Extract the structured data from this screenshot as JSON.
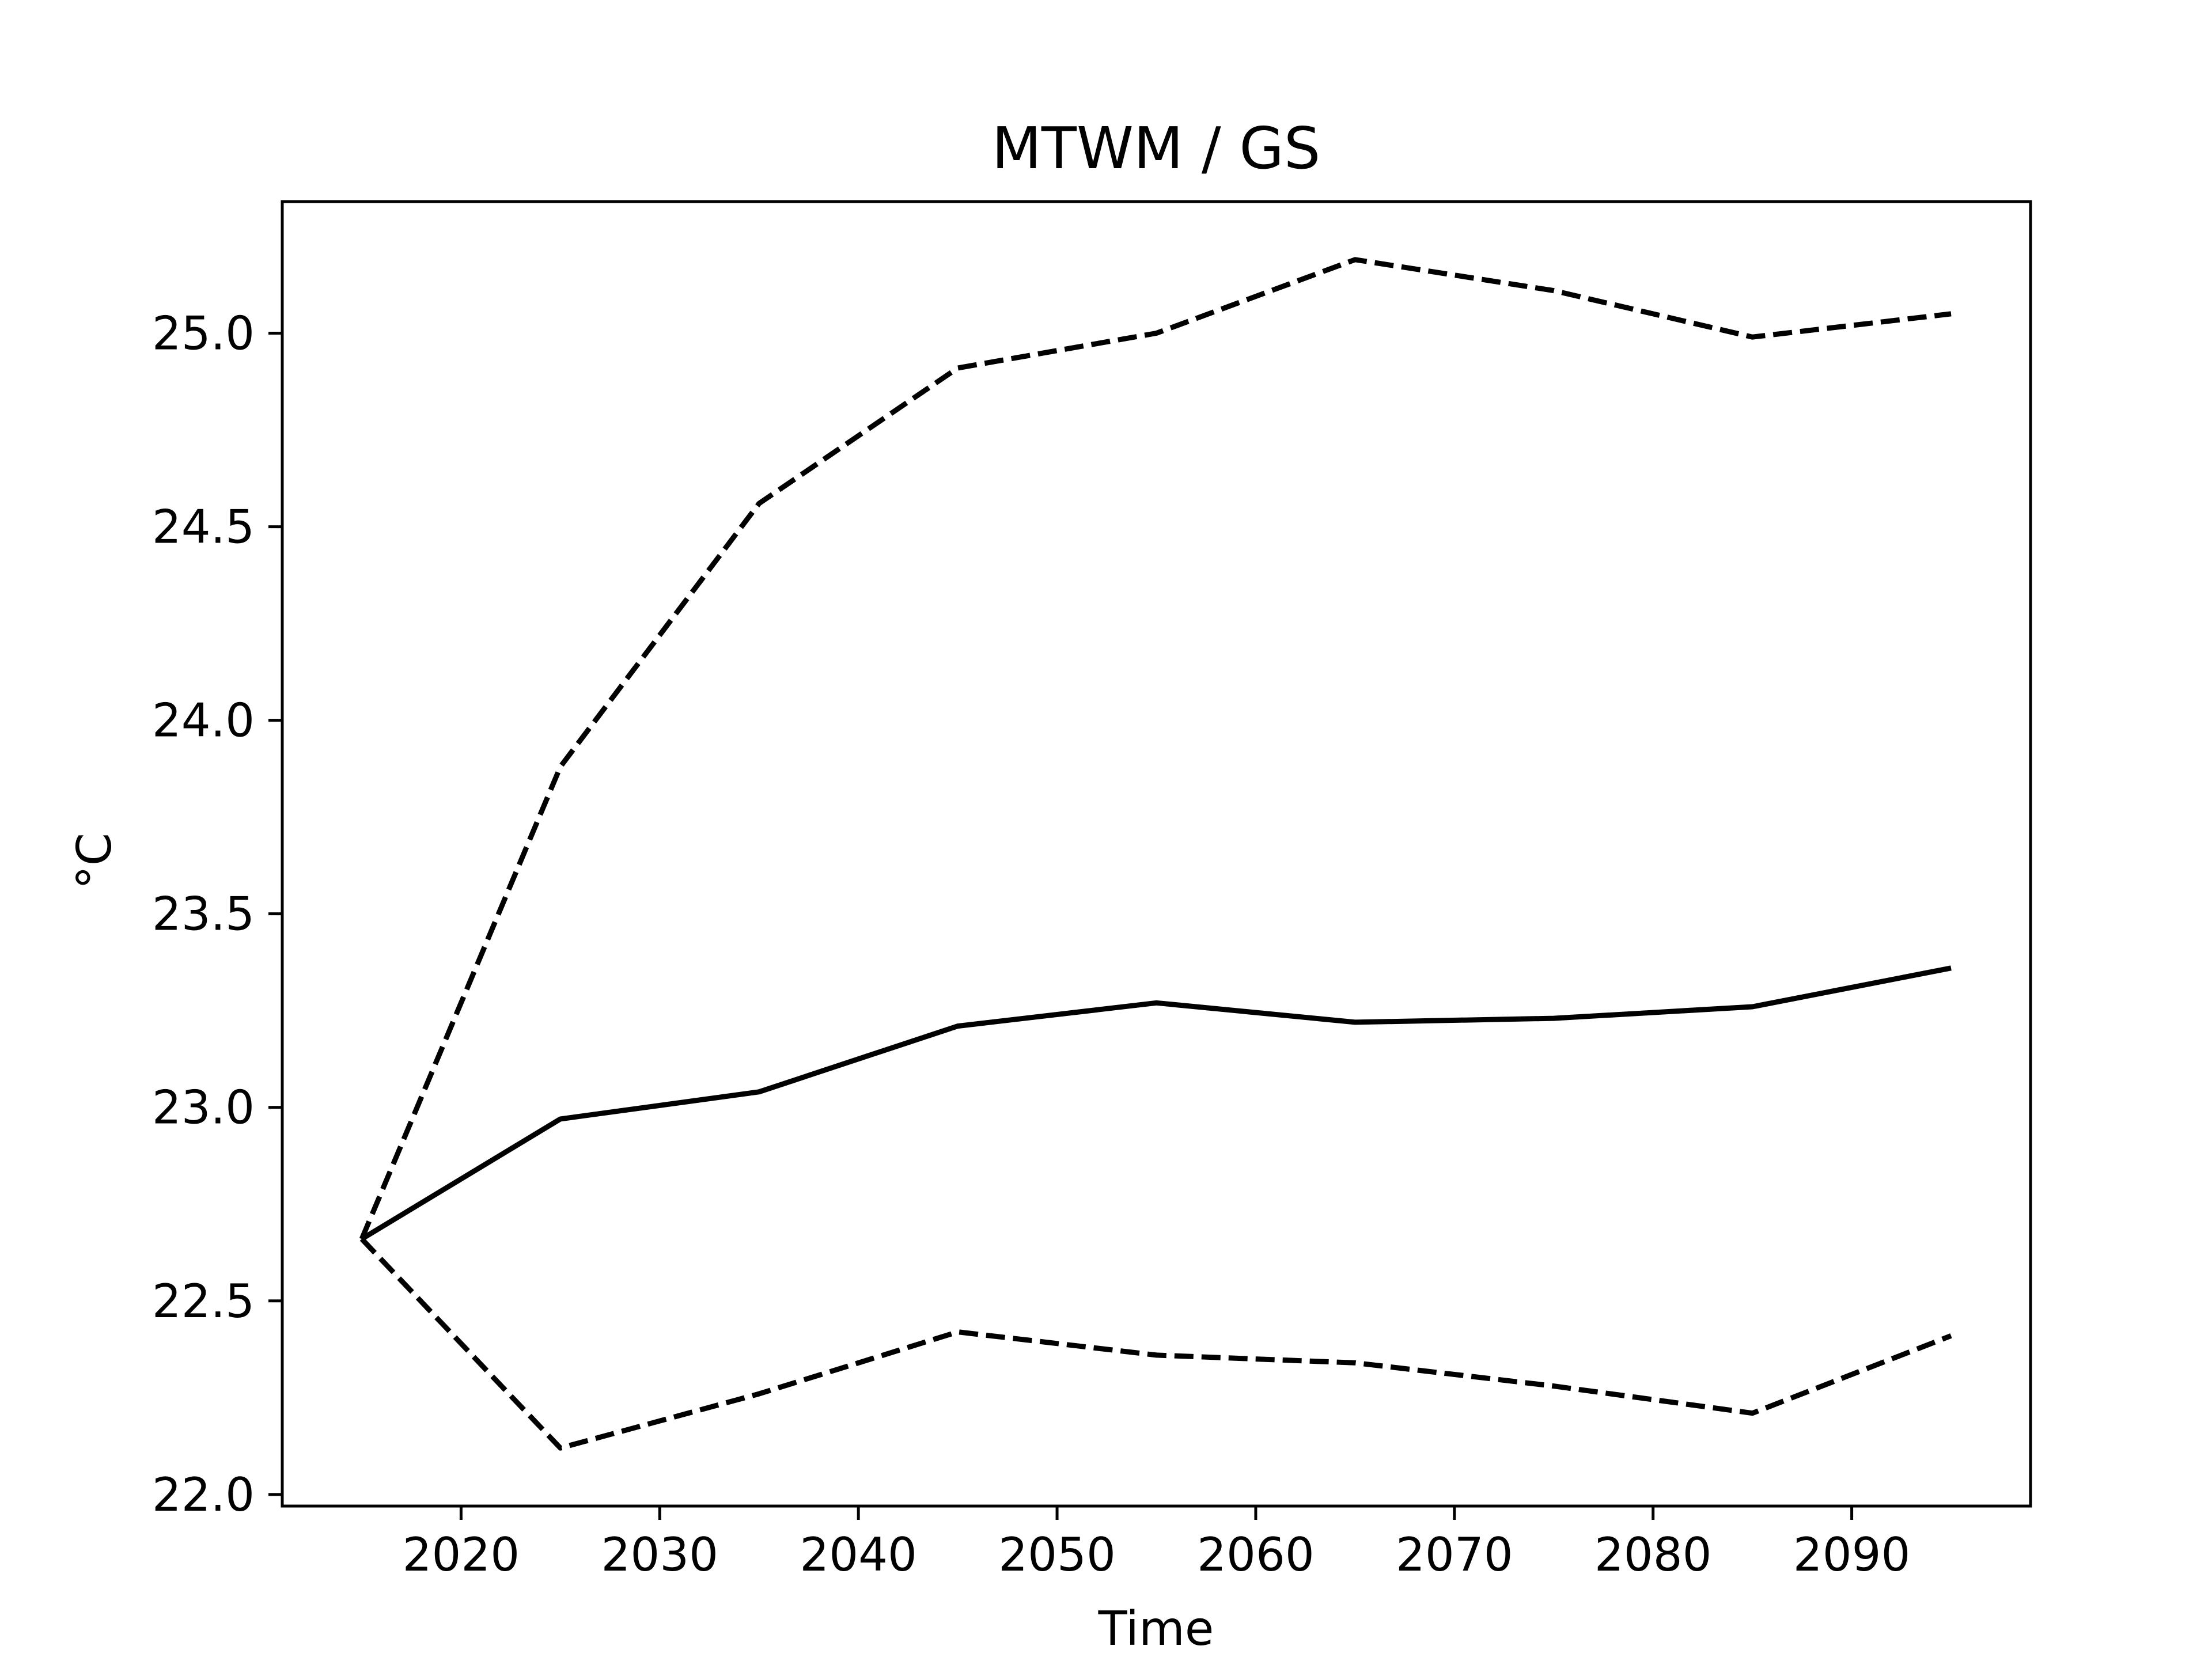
{
  "colors": {
    "line": "#000000",
    "background": "#ffffff",
    "frame": "#000000"
  },
  "chart_data": {
    "type": "line",
    "title": "MTWM / GS",
    "xlabel": "Time",
    "ylabel": "°C",
    "xlim": [
      2011,
      2099
    ],
    "ylim": [
      21.97,
      25.34
    ],
    "xticks": [
      2020,
      2030,
      2040,
      2050,
      2060,
      2070,
      2080,
      2090
    ],
    "xtick_labels": [
      "2020",
      "2030",
      "2040",
      "2050",
      "2060",
      "2070",
      "2080",
      "2090"
    ],
    "yticks": [
      22.0,
      22.5,
      23.0,
      23.5,
      24.0,
      24.5,
      25.0
    ],
    "ytick_labels": [
      "22.0",
      "22.5",
      "23.0",
      "23.5",
      "24.0",
      "24.5",
      "25.0"
    ],
    "grid": false,
    "x": [
      2015,
      2025,
      2035,
      2045,
      2055,
      2065,
      2075,
      2085,
      2095
    ],
    "series": [
      {
        "style": "dashed",
        "values": [
          22.66,
          23.88,
          24.56,
          24.91,
          25.0,
          25.19,
          25.11,
          24.99,
          25.05
        ]
      },
      {
        "style": "solid",
        "values": [
          22.66,
          22.97,
          23.04,
          23.21,
          23.27,
          23.22,
          23.23,
          23.26,
          23.36
        ]
      },
      {
        "style": "dashed",
        "values": [
          22.66,
          22.12,
          22.26,
          22.42,
          22.36,
          22.34,
          22.28,
          22.21,
          22.41
        ]
      }
    ]
  }
}
